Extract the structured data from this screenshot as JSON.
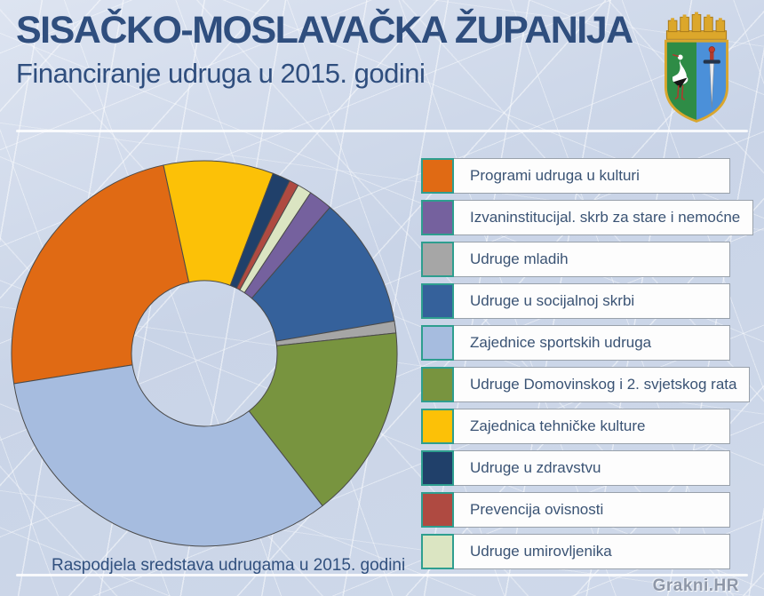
{
  "header": {
    "title": "SISAČKO-MOSLAVAČKA ŽUPANIJA",
    "subtitle": "Financiranje udruga u 2015. godini",
    "crest_colors": {
      "crown": "#DCA72B",
      "left_field_green": "#2E8C46",
      "right_field_blue": "#4B90D9",
      "stork": "#FFFFFF",
      "sword_blade": "#E8EBEF",
      "sword_hilt": "#B23A2C"
    }
  },
  "chart_data": {
    "type": "pie",
    "subtype": "donut",
    "title": "Financiranje udruga u 2015. godini",
    "caption": "Raspodjela sredstava udrugama u 2015. godini",
    "unit": "percent of total, estimated from arc angles",
    "start_angle_deg": 261,
    "direction": "clockwise",
    "inner_radius_ratio": 0.38,
    "slice_outline": "#4a4a4a",
    "segments": [
      {
        "label": "Programi udruga u kulturi",
        "color": "#E06A14",
        "percent": 24.1
      },
      {
        "label": "Zajednica tehničke kulture",
        "color": "#FCC107",
        "percent": 9.2
      },
      {
        "label": "Udruge u zdravstvu",
        "color": "#20406A",
        "percent": 1.5
      },
      {
        "label": "Prevencija ovisnosti",
        "color": "#AF4A41",
        "percent": 0.8
      },
      {
        "label": "Udruge umirovljenika",
        "color": "#DBE5C2",
        "percent": 1.2
      },
      {
        "label": "Izvaninstitucijal. skrb za stare i nemoćne",
        "color": "#75619E",
        "percent": 2.0
      },
      {
        "label": "Udruge u socijalnoj skrbi",
        "color": "#35619B",
        "percent": 11.0
      },
      {
        "label": "Udruge mladih",
        "color": "#A6A6A6",
        "percent": 1.0
      },
      {
        "label": "Udruge Domovinskog i 2. svjetskog rata",
        "color": "#78943F",
        "percent": 16.2
      },
      {
        "label": "Zajednice sportskih udruga",
        "color": "#A6BCDF",
        "percent": 33.0
      }
    ]
  },
  "legend": {
    "swatch_border_color": "#2E9E8F",
    "box_border_color": "#99A1AB",
    "text_color": "#3A5374",
    "items": [
      {
        "label": "Programi udruga u kulturi",
        "color": "#E06A14"
      },
      {
        "label": "Izvaninstitucijal. skrb za stare i nemoćne",
        "color": "#75619E"
      },
      {
        "label": "Udruge mladih",
        "color": "#A6A6A6"
      },
      {
        "label": "Udruge u socijalnoj skrbi",
        "color": "#35619B"
      },
      {
        "label": "Zajednice sportskih udruga",
        "color": "#A6BCDF"
      },
      {
        "label": "Udruge Domovinskog i 2. svjetskog rata",
        "color": "#78943F"
      },
      {
        "label": "Zajednica tehničke kulture",
        "color": "#FCC107"
      },
      {
        "label": "Udruge u zdravstvu",
        "color": "#20406A"
      },
      {
        "label": "Prevencija ovisnosti",
        "color": "#AF4A41"
      },
      {
        "label": "Udruge umirovljenika",
        "color": "#DBE5C2"
      }
    ]
  },
  "footer": {
    "watermark": "Grakni.HR"
  }
}
